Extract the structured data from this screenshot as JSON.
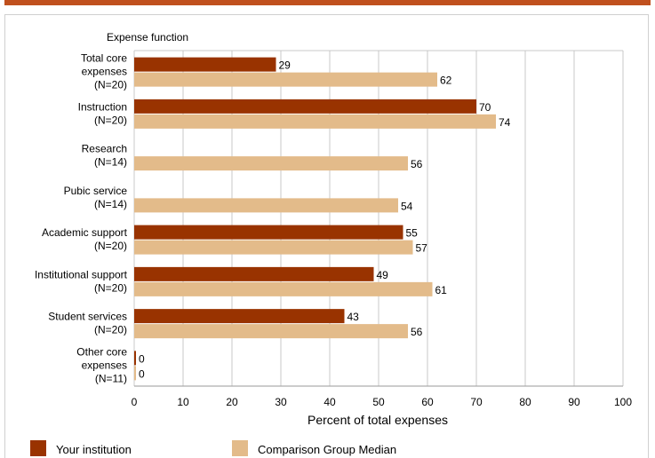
{
  "chart_data": {
    "type": "bar",
    "orientation": "horizontal",
    "category_axis_title": "Expense function",
    "categories": [
      [
        "Total core",
        "expenses",
        "(N=20)"
      ],
      [
        "Instruction",
        "(N=20)"
      ],
      [
        "Research",
        "(N=14)"
      ],
      [
        "Pubic service",
        "(N=14)"
      ],
      [
        "Academic support",
        "(N=20)"
      ],
      [
        "Institutional support",
        "(N=20)"
      ],
      [
        "Student services",
        "(N=20)"
      ],
      [
        "Other core",
        "expenses",
        "(N=11)"
      ]
    ],
    "series": [
      {
        "name": "Your institution",
        "color": "#993300",
        "values": [
          29,
          70,
          null,
          null,
          55,
          49,
          43,
          0
        ]
      },
      {
        "name": "Comparison Group Median",
        "color": "#e3bb8a",
        "values": [
          62,
          74,
          56,
          54,
          57,
          61,
          56,
          0
        ]
      }
    ],
    "xlabel": "Percent of total expenses",
    "xlim": [
      0,
      100
    ],
    "xticks": [
      0,
      10,
      20,
      30,
      40,
      50,
      60,
      70,
      80,
      90,
      100
    ],
    "grid": true,
    "legend_position": "bottom"
  }
}
